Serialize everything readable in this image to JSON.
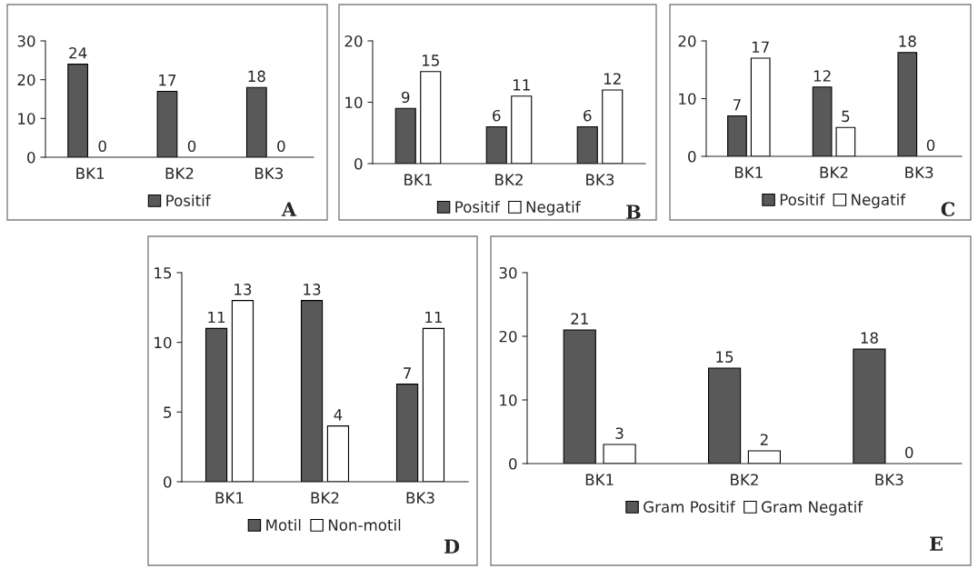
{
  "chart_data": [
    {
      "type": "bar",
      "categories": [
        "BK1",
        "BK2",
        "BK3"
      ],
      "series": [
        {
          "name": "Positif",
          "color": "#595959",
          "values": [
            24,
            17,
            18
          ]
        },
        {
          "color": "#ffffff",
          "values": [
            0,
            0,
            0
          ]
        }
      ],
      "ylim": [
        0,
        30
      ],
      "yticks": [
        0,
        10,
        20,
        30
      ],
      "data_labels": true,
      "legend": "bottom",
      "grid": false,
      "annotations": [
        "A"
      ]
    },
    {
      "type": "bar",
      "categories": [
        "BK1",
        "BK2",
        "BK3"
      ],
      "series": [
        {
          "name": "Positif",
          "color": "#595959",
          "values": [
            9,
            6,
            6
          ]
        },
        {
          "name": "Negatif",
          "color": "#ffffff",
          "values": [
            15,
            11,
            12
          ]
        }
      ],
      "ylim": [
        0,
        20
      ],
      "yticks": [
        0,
        10,
        20
      ],
      "data_labels": true,
      "legend": "bottom",
      "grid": false,
      "annotations": [
        "B"
      ]
    },
    {
      "type": "bar",
      "categories": [
        "BK1",
        "BK2",
        "BK3"
      ],
      "series": [
        {
          "name": "Positif",
          "color": "#595959",
          "values": [
            7,
            12,
            18
          ]
        },
        {
          "name": "Negatif",
          "color": "#ffffff",
          "values": [
            17,
            5,
            0
          ]
        }
      ],
      "ylim": [
        0,
        20
      ],
      "yticks": [
        0,
        10,
        20
      ],
      "data_labels": true,
      "legend": "bottom",
      "grid": false,
      "annotations": [
        "C"
      ]
    },
    {
      "type": "bar",
      "categories": [
        "BK1",
        "BK2",
        "BK3"
      ],
      "series": [
        {
          "name": "Motil",
          "color": "#595959",
          "values": [
            11,
            13,
            7
          ]
        },
        {
          "name": "Non-motil",
          "color": "#ffffff",
          "values": [
            13,
            4,
            11
          ]
        }
      ],
      "ylim": [
        0,
        15
      ],
      "yticks": [
        0,
        5,
        10,
        15
      ],
      "data_labels": true,
      "legend": "bottom",
      "grid": false,
      "annotations": [
        "D"
      ]
    },
    {
      "type": "bar",
      "categories": [
        "BK1",
        "BK2",
        "BK3"
      ],
      "series": [
        {
          "name": "Gram Positif",
          "color": "#595959",
          "values": [
            21,
            15,
            18
          ]
        },
        {
          "name": "Gram Negatif",
          "color": "#ffffff",
          "values": [
            3,
            2,
            0
          ]
        }
      ],
      "ylim": [
        0,
        30
      ],
      "yticks": [
        0,
        10,
        20,
        30
      ],
      "data_labels": true,
      "legend": "bottom",
      "grid": false,
      "annotations": [
        "E"
      ]
    }
  ]
}
